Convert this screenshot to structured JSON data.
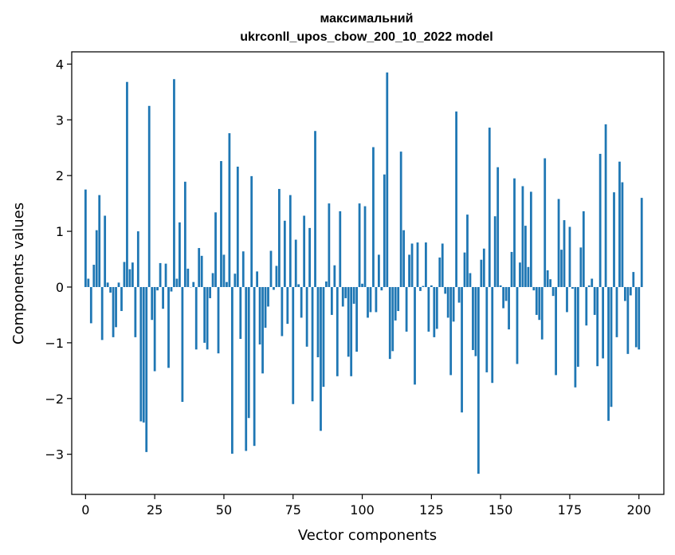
{
  "chart_data": {
    "type": "bar",
    "title_lines": [
      "максимальний",
      "ukrconll_upos_cbow_200_10_2022 model"
    ],
    "xlabel": "Vector components",
    "ylabel": "Components values",
    "xlim": [
      -5,
      209
    ],
    "ylim": [
      -3.72,
      4.22
    ],
    "xticks": [
      0,
      25,
      50,
      75,
      100,
      125,
      150,
      175,
      200
    ],
    "yticks": [
      -3,
      -2,
      -1,
      0,
      1,
      2,
      3,
      4
    ],
    "bar_color": "#1f77b4",
    "grid": false,
    "values": [
      1.75,
      0.15,
      -0.65,
      0.4,
      1.02,
      1.65,
      -0.95,
      1.28,
      0.08,
      -0.1,
      -0.9,
      -0.72,
      0.08,
      -0.43,
      0.45,
      3.68,
      0.32,
      0.44,
      -0.9,
      1.0,
      -2.41,
      -2.43,
      -2.96,
      3.25,
      -0.59,
      -1.51,
      -0.06,
      0.43,
      -0.39,
      0.42,
      -1.45,
      -0.08,
      3.73,
      0.15,
      1.16,
      -2.06,
      1.89,
      0.33,
      0.0,
      0.09,
      -1.12,
      0.7,
      0.56,
      -1.0,
      -1.12,
      -0.2,
      0.25,
      1.34,
      -1.19,
      2.26,
      0.58,
      0.09,
      2.76,
      -2.99,
      0.24,
      2.16,
      -0.93,
      0.64,
      -2.94,
      -2.35,
      1.99,
      -2.85,
      0.28,
      -1.03,
      -1.55,
      -0.73,
      -0.35,
      0.65,
      -0.05,
      0.38,
      1.76,
      -0.88,
      1.19,
      -0.66,
      1.65,
      -2.1,
      0.85,
      0.05,
      -0.55,
      1.28,
      -1.07,
      1.06,
      -2.05,
      2.8,
      -1.26,
      -2.58,
      -1.79,
      0.1,
      1.5,
      -0.5,
      0.39,
      -1.6,
      1.36,
      -0.35,
      -0.2,
      -1.25,
      -1.6,
      -0.3,
      -1.16,
      1.5,
      0.06,
      1.45,
      -0.55,
      -0.45,
      2.51,
      -0.45,
      0.58,
      -0.06,
      2.02,
      3.85,
      -1.29,
      -1.15,
      -0.6,
      -0.43,
      2.43,
      1.02,
      -0.8,
      0.58,
      0.78,
      -1.75,
      0.8,
      -0.07,
      0.02,
      0.8,
      -0.8,
      0.03,
      -0.9,
      -0.75,
      0.53,
      0.78,
      -0.12,
      -0.55,
      -1.58,
      -0.62,
      3.15,
      -0.28,
      -2.25,
      0.62,
      1.3,
      0.25,
      -1.13,
      -1.24,
      -3.35,
      0.49,
      0.69,
      -1.53,
      2.86,
      -1.72,
      1.27,
      2.15,
      0.03,
      -0.38,
      -0.25,
      -0.76,
      0.63,
      1.95,
      -1.38,
      0.44,
      1.81,
      1.1,
      0.36,
      1.71,
      -0.06,
      -0.5,
      -0.59,
      -0.94,
      2.31,
      0.3,
      0.14,
      -0.16,
      -1.58,
      1.58,
      0.67,
      1.2,
      -0.45,
      1.08,
      -0.03,
      -1.8,
      -1.43,
      0.71,
      1.36,
      -0.69,
      0.03,
      0.15,
      -0.5,
      -1.42,
      2.39,
      -1.28,
      2.92,
      -2.4,
      -2.15,
      1.7,
      -0.9,
      2.25,
      1.88,
      -0.25,
      -1.2,
      -0.15,
      0.27,
      -1.08,
      -1.12,
      1.6
    ]
  }
}
